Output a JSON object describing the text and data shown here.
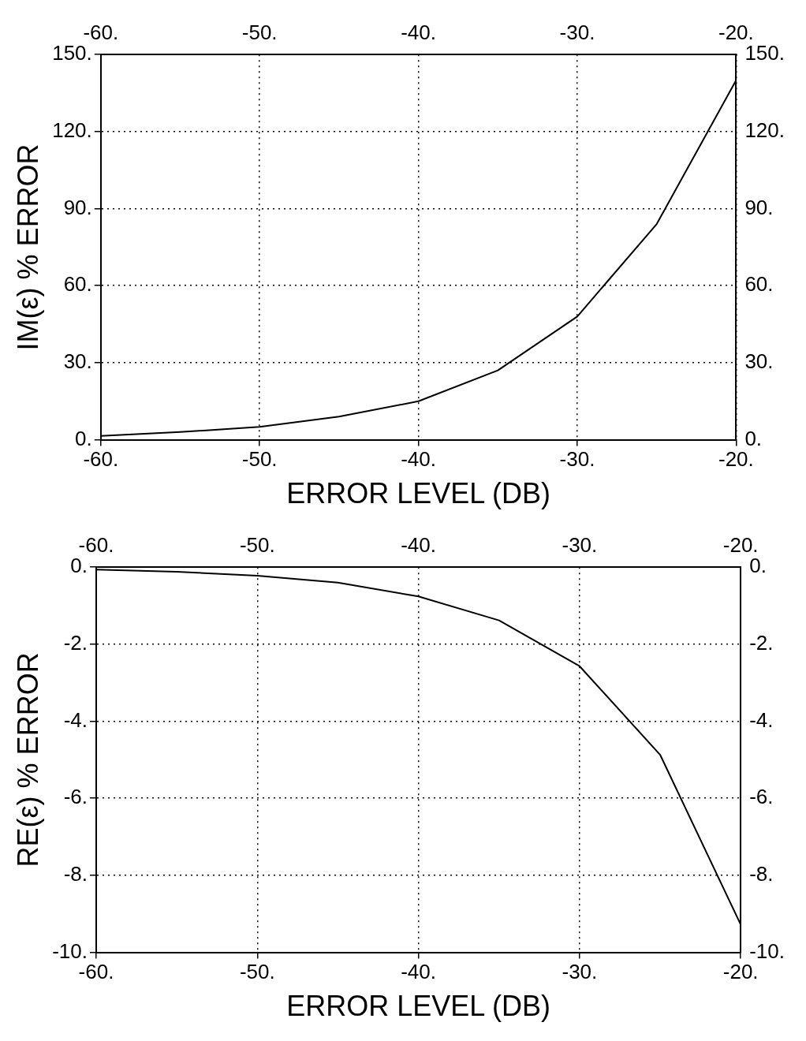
{
  "chart_data": [
    {
      "type": "line",
      "xlabel": "ERROR LEVEL (DB)",
      "ylabel": "IM(ε) % ERROR",
      "x": [
        -60,
        -55,
        -50,
        -45,
        -40,
        -35,
        -30,
        -25,
        -20
      ],
      "series": [
        {
          "color": "#000000",
          "values": [
            1.5,
            3,
            5,
            9,
            15,
            27,
            48,
            84,
            140
          ]
        }
      ],
      "xlim": [
        -60,
        -20
      ],
      "xticks": [
        {
          "value": -60,
          "label": "-60."
        },
        {
          "value": -50,
          "label": "-50."
        },
        {
          "value": -40,
          "label": "-40."
        },
        {
          "value": -30,
          "label": "-30."
        },
        {
          "value": -20,
          "label": "-20."
        }
      ],
      "x2lim": [
        -60,
        -20
      ],
      "x2ticks": [
        {
          "value": -60,
          "label": "-60."
        },
        {
          "value": -50,
          "label": "-50."
        },
        {
          "value": -40,
          "label": "-40."
        },
        {
          "value": -30,
          "label": "-30."
        },
        {
          "value": -20,
          "label": "-20."
        }
      ],
      "ylim": [
        0,
        150
      ],
      "yticks": [
        {
          "value": 0,
          "label": "0."
        },
        {
          "value": 30,
          "label": "30."
        },
        {
          "value": 60,
          "label": "60."
        },
        {
          "value": 90,
          "label": "90."
        },
        {
          "value": 120,
          "label": "120."
        },
        {
          "value": 150,
          "label": "150."
        }
      ],
      "y2lim": [
        0,
        150
      ],
      "y2ticks": [
        {
          "value": 0,
          "label": "0."
        },
        {
          "value": 30,
          "label": "30."
        },
        {
          "value": 60,
          "label": "60."
        },
        {
          "value": 90,
          "label": "90."
        },
        {
          "value": 120,
          "label": "120."
        },
        {
          "value": 150,
          "label": "150."
        }
      ],
      "grid": true,
      "legend": false,
      "marker": "none",
      "line_style": "solid"
    },
    {
      "type": "line",
      "xlabel": "ERROR LEVEL (DB)",
      "ylabel": "RE(ε) % ERROR",
      "x": [
        -60,
        -55,
        -50,
        -45,
        -40,
        -35,
        -30,
        -25,
        -20
      ],
      "series": [
        {
          "color": "#000000",
          "values": [
            -0.06,
            -0.12,
            -0.22,
            -0.4,
            -0.76,
            -1.38,
            -2.57,
            -4.87,
            -9.28
          ]
        }
      ],
      "xlim": [
        -60,
        -20
      ],
      "xticks": [
        {
          "value": -60,
          "label": "-60."
        },
        {
          "value": -50,
          "label": "-50."
        },
        {
          "value": -40,
          "label": "-40."
        },
        {
          "value": -30,
          "label": "-30."
        },
        {
          "value": -20,
          "label": "-20."
        }
      ],
      "x2lim": [
        -60,
        -20
      ],
      "x2ticks": [
        {
          "value": -60,
          "label": "-60."
        },
        {
          "value": -50,
          "label": "-50."
        },
        {
          "value": -40,
          "label": "-40."
        },
        {
          "value": -30,
          "label": "-30."
        },
        {
          "value": -20,
          "label": "-20."
        }
      ],
      "ylim": [
        -10,
        0
      ],
      "yticks": [
        {
          "value": -10,
          "label": "-10."
        },
        {
          "value": -8,
          "label": "-8."
        },
        {
          "value": -6,
          "label": "-6."
        },
        {
          "value": -4,
          "label": "-4."
        },
        {
          "value": -2,
          "label": "-2."
        },
        {
          "value": 0,
          "label": "0."
        }
      ],
      "y2lim": [
        -10,
        0
      ],
      "y2ticks": [
        {
          "value": -10,
          "label": "-10."
        },
        {
          "value": -8,
          "label": "-8."
        },
        {
          "value": -6,
          "label": "-6."
        },
        {
          "value": -4,
          "label": "-4."
        },
        {
          "value": -2,
          "label": "-2."
        },
        {
          "value": 0,
          "label": "0."
        }
      ],
      "grid": true,
      "legend": false,
      "marker": "none",
      "line_style": "solid"
    }
  ]
}
